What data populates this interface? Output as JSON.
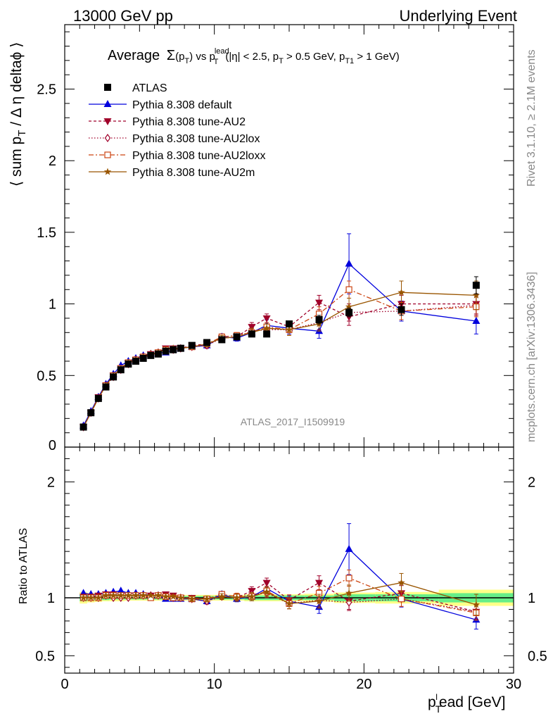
{
  "header": {
    "left": "13000 GeV pp",
    "right": "Underlying Event"
  },
  "side_text": {
    "rivet": "Rivet 3.1.10, ≥ 2.1M events",
    "mcplots": "mcplots.cern.ch [arXiv:1306.3436]"
  },
  "watermark": "ATLAS_2017_I1509919",
  "title_parts": {
    "prefix": "Average",
    "sigma": "Σ",
    "p": "(p",
    "p_sub": "T",
    "p_close": ") vs p",
    "lead_sup": "lead",
    "lead_sub": "T",
    "rest1": "(|η| < 2.5, p",
    "rest1_sub": "T",
    "rest2": " > 0.5 GeV, p",
    "rest2_sub": "T1",
    "rest3": " > 1 GeV)"
  },
  "ylabel_main": {
    "pre": "⟨ sum p",
    "sub": "T",
    "post": " / Δ η deltaϕ ⟩"
  },
  "ylabel_ratio": "Ratio to ATLAS",
  "xlabel": {
    "p": "p",
    "sub": "T",
    "sup": "l",
    "rest": "ead [GeV]"
  },
  "chart_data": [
    {
      "type": "line",
      "panel": "main",
      "xlim": [
        0,
        30
      ],
      "ylim": [
        0,
        2.95
      ],
      "xticks": [
        0,
        10,
        20,
        30
      ],
      "yticks": [
        0.5,
        1,
        1.5,
        2,
        2.5
      ],
      "ytick_labels": [
        "0.5",
        "1",
        "1.5",
        "2",
        "2.5"
      ],
      "bottom_tick_label": "0",
      "legend_position": "top-left",
      "x": [
        1.25,
        1.75,
        2.25,
        2.75,
        3.25,
        3.75,
        4.25,
        4.75,
        5.25,
        5.75,
        6.25,
        6.75,
        7.25,
        7.75,
        8.5,
        9.5,
        10.5,
        11.5,
        12.5,
        13.5,
        15,
        17,
        19,
        22.5,
        27.5
      ],
      "series": [
        {
          "name": "ATLAS",
          "color": "#000000",
          "marker": "square",
          "values": [
            0.14,
            0.24,
            0.34,
            0.42,
            0.49,
            0.54,
            0.58,
            0.6,
            0.62,
            0.64,
            0.65,
            0.67,
            0.68,
            0.69,
            0.71,
            0.73,
            0.75,
            0.77,
            0.79,
            0.79,
            0.86,
            0.89,
            0.94,
            0.96,
            1.13
          ],
          "errors": [
            0.01,
            0.01,
            0.01,
            0.01,
            0.01,
            0.01,
            0.01,
            0.01,
            0.01,
            0.01,
            0.01,
            0.01,
            0.01,
            0.01,
            0.01,
            0.01,
            0.01,
            0.01,
            0.02,
            0.02,
            0.02,
            0.03,
            0.03,
            0.04,
            0.06
          ]
        },
        {
          "name": "Pythia 8.308 default",
          "color": "#0000dd",
          "marker": "triangle-up",
          "dash": "",
          "values": [
            0.15,
            0.25,
            0.35,
            0.44,
            0.51,
            0.57,
            0.6,
            0.62,
            0.64,
            0.65,
            0.66,
            0.66,
            0.68,
            0.69,
            0.7,
            0.71,
            0.77,
            0.76,
            0.8,
            0.85,
            0.83,
            0.81,
            1.28,
            0.95,
            0.88
          ],
          "errors": [
            0.005,
            0.005,
            0.005,
            0.005,
            0.005,
            0.005,
            0.005,
            0.005,
            0.005,
            0.005,
            0.005,
            0.005,
            0.01,
            0.01,
            0.01,
            0.02,
            0.02,
            0.02,
            0.03,
            0.04,
            0.04,
            0.05,
            0.21,
            0.07,
            0.09
          ]
        },
        {
          "name": "Pythia 8.308 tune-AU2",
          "color": "#a0002a",
          "marker": "triangle-down",
          "dash": "4,3",
          "values": [
            0.14,
            0.24,
            0.35,
            0.43,
            0.5,
            0.55,
            0.59,
            0.61,
            0.63,
            0.65,
            0.66,
            0.69,
            0.69,
            0.69,
            0.71,
            0.72,
            0.76,
            0.77,
            0.84,
            0.9,
            0.84,
            1.01,
            0.91,
            1.0,
            1.0
          ],
          "errors": [
            0.005,
            0.005,
            0.005,
            0.005,
            0.005,
            0.005,
            0.005,
            0.005,
            0.005,
            0.005,
            0.005,
            0.01,
            0.01,
            0.01,
            0.01,
            0.02,
            0.02,
            0.02,
            0.03,
            0.03,
            0.04,
            0.05,
            0.06,
            0.06,
            0.07
          ]
        },
        {
          "name": "Pythia 8.308 tune-AU2lox",
          "color": "#a0002a",
          "marker": "diamond-open",
          "dash": "1.5,2.5",
          "values": [
            0.14,
            0.24,
            0.34,
            0.43,
            0.49,
            0.54,
            0.58,
            0.61,
            0.63,
            0.65,
            0.66,
            0.68,
            0.68,
            0.69,
            0.7,
            0.71,
            0.76,
            0.77,
            0.81,
            0.82,
            0.82,
            0.87,
            0.94,
            0.95,
            0.99
          ],
          "errors": [
            0.005,
            0.005,
            0.005,
            0.005,
            0.005,
            0.005,
            0.005,
            0.005,
            0.005,
            0.005,
            0.005,
            0.01,
            0.01,
            0.01,
            0.01,
            0.02,
            0.02,
            0.02,
            0.03,
            0.03,
            0.04,
            0.05,
            0.06,
            0.06,
            0.07
          ]
        },
        {
          "name": "Pythia 8.308 tune-AU2loxx",
          "color": "#cc4411",
          "marker": "square-open",
          "dash": "7,3,2,3",
          "values": [
            0.14,
            0.24,
            0.34,
            0.43,
            0.5,
            0.55,
            0.59,
            0.61,
            0.63,
            0.64,
            0.66,
            0.68,
            0.68,
            0.69,
            0.7,
            0.72,
            0.77,
            0.78,
            0.8,
            0.84,
            0.82,
            0.93,
            1.1,
            0.95,
            0.98
          ],
          "errors": [
            0.005,
            0.005,
            0.005,
            0.005,
            0.005,
            0.005,
            0.005,
            0.005,
            0.005,
            0.005,
            0.005,
            0.01,
            0.01,
            0.01,
            0.01,
            0.02,
            0.02,
            0.02,
            0.03,
            0.03,
            0.04,
            0.05,
            0.06,
            0.06,
            0.07
          ]
        },
        {
          "name": "Pythia 8.308 tune-AU2m",
          "color": "#995500",
          "marker": "star",
          "dash": "",
          "values": [
            0.14,
            0.24,
            0.34,
            0.43,
            0.5,
            0.55,
            0.59,
            0.61,
            0.63,
            0.65,
            0.66,
            0.68,
            0.69,
            0.69,
            0.7,
            0.72,
            0.76,
            0.77,
            0.8,
            0.83,
            0.82,
            0.86,
            0.98,
            1.08,
            1.06
          ],
          "errors": [
            0.005,
            0.005,
            0.005,
            0.005,
            0.005,
            0.005,
            0.005,
            0.005,
            0.005,
            0.005,
            0.005,
            0.01,
            0.01,
            0.01,
            0.01,
            0.02,
            0.02,
            0.02,
            0.03,
            0.03,
            0.04,
            0.05,
            0.06,
            0.08,
            0.1
          ]
        }
      ]
    },
    {
      "type": "line",
      "panel": "ratio",
      "xlim": [
        0,
        30
      ],
      "ylim": [
        0.35,
        2.3
      ],
      "ylabel": "Ratio to ATLAS",
      "xticks": [
        0,
        10,
        20,
        30
      ],
      "xtick_labels": [
        "0",
        "10",
        "20",
        "30"
      ],
      "yticks": [
        0.5,
        1,
        2
      ],
      "ytick_labels": [
        "0.5",
        "1",
        "2"
      ],
      "reference_line": 1,
      "bands": {
        "stat_color": "#66ee88",
        "total_color": "#ffff88",
        "stat_half_width": [
          0.03,
          0.025,
          0.02,
          0.02,
          0.015,
          0.015,
          0.015,
          0.015,
          0.015,
          0.015,
          0.015,
          0.015,
          0.015,
          0.015,
          0.015,
          0.015,
          0.015,
          0.015,
          0.02,
          0.02,
          0.02,
          0.02,
          0.03,
          0.03,
          0.04
        ],
        "total_half_width": [
          0.05,
          0.04,
          0.035,
          0.03,
          0.03,
          0.03,
          0.025,
          0.025,
          0.025,
          0.025,
          0.025,
          0.025,
          0.025,
          0.025,
          0.025,
          0.025,
          0.025,
          0.025,
          0.03,
          0.03,
          0.03,
          0.035,
          0.045,
          0.05,
          0.07
        ]
      },
      "x": [
        1.25,
        1.75,
        2.25,
        2.75,
        3.25,
        3.75,
        4.25,
        4.75,
        5.25,
        5.75,
        6.25,
        6.75,
        7.25,
        7.75,
        8.5,
        9.5,
        10.5,
        11.5,
        12.5,
        13.5,
        15,
        17,
        19,
        22.5,
        27.5
      ],
      "series": [
        {
          "name": "Pythia 8.308 default",
          "values": [
            1.04,
            1.03,
            1.03,
            1.04,
            1.05,
            1.06,
            1.04,
            1.04,
            1.03,
            1.02,
            1.02,
            0.99,
            0.99,
            0.99,
            0.99,
            0.97,
            1.03,
            0.99,
            1.01,
            1.08,
            0.97,
            0.92,
            1.42,
            0.99,
            0.81
          ],
          "errors": [
            0.01,
            0.01,
            0.01,
            0.01,
            0.01,
            0.01,
            0.01,
            0.01,
            0.01,
            0.01,
            0.01,
            0.01,
            0.01,
            0.015,
            0.02,
            0.02,
            0.025,
            0.025,
            0.035,
            0.05,
            0.045,
            0.055,
            0.22,
            0.07,
            0.08
          ]
        },
        {
          "name": "Pythia 8.308 tune-AU2",
          "values": [
            1.01,
            1.01,
            1.02,
            1.03,
            1.03,
            1.02,
            1.02,
            1.02,
            1.02,
            1.02,
            1.02,
            1.03,
            1.02,
            1.0,
            1.0,
            0.99,
            1.01,
            1.0,
            1.06,
            1.13,
            0.98,
            1.13,
            0.97,
            1.04,
            0.88
          ],
          "errors": [
            0.01,
            0.01,
            0.01,
            0.01,
            0.01,
            0.01,
            0.01,
            0.01,
            0.01,
            0.01,
            0.01,
            0.015,
            0.015,
            0.015,
            0.02,
            0.025,
            0.025,
            0.03,
            0.035,
            0.04,
            0.045,
            0.06,
            0.07,
            0.065,
            0.065
          ]
        },
        {
          "name": "Pythia 8.308 tune-AU2lox",
          "values": [
            1.0,
            1.0,
            1.0,
            1.02,
            1.0,
            1.0,
            1.0,
            1.02,
            1.02,
            1.02,
            1.02,
            1.01,
            1.0,
            1.0,
            0.99,
            0.97,
            1.01,
            1.0,
            1.03,
            1.04,
            0.95,
            0.98,
            0.96,
            0.99,
            0.88
          ],
          "errors": [
            0.01,
            0.01,
            0.01,
            0.01,
            0.01,
            0.01,
            0.01,
            0.01,
            0.01,
            0.01,
            0.01,
            0.015,
            0.015,
            0.015,
            0.02,
            0.025,
            0.025,
            0.03,
            0.035,
            0.04,
            0.045,
            0.06,
            0.07,
            0.065,
            0.065
          ]
        },
        {
          "name": "Pythia 8.308 tune-AU2loxx",
          "values": [
            1.0,
            1.0,
            1.0,
            1.02,
            1.02,
            1.02,
            1.02,
            1.02,
            1.02,
            1.0,
            1.02,
            1.01,
            1.0,
            1.0,
            0.99,
            0.99,
            1.03,
            1.01,
            1.01,
            1.06,
            0.95,
            1.04,
            1.17,
            0.99,
            0.87
          ],
          "errors": [
            0.01,
            0.01,
            0.01,
            0.01,
            0.01,
            0.01,
            0.01,
            0.01,
            0.01,
            0.01,
            0.01,
            0.015,
            0.015,
            0.015,
            0.02,
            0.025,
            0.025,
            0.03,
            0.035,
            0.04,
            0.045,
            0.06,
            0.07,
            0.065,
            0.065
          ]
        },
        {
          "name": "Pythia 8.308 tune-AU2m",
          "values": [
            1.0,
            1.0,
            1.0,
            1.02,
            1.02,
            1.02,
            1.02,
            1.02,
            1.02,
            1.02,
            1.02,
            1.01,
            1.01,
            1.0,
            0.99,
            0.99,
            1.01,
            1.0,
            1.01,
            1.05,
            0.95,
            0.97,
            1.04,
            1.13,
            0.94
          ],
          "errors": [
            0.01,
            0.01,
            0.01,
            0.01,
            0.01,
            0.01,
            0.01,
            0.01,
            0.01,
            0.01,
            0.01,
            0.015,
            0.015,
            0.015,
            0.02,
            0.025,
            0.025,
            0.03,
            0.035,
            0.04,
            0.045,
            0.06,
            0.07,
            0.08,
            0.09
          ]
        }
      ]
    }
  ]
}
